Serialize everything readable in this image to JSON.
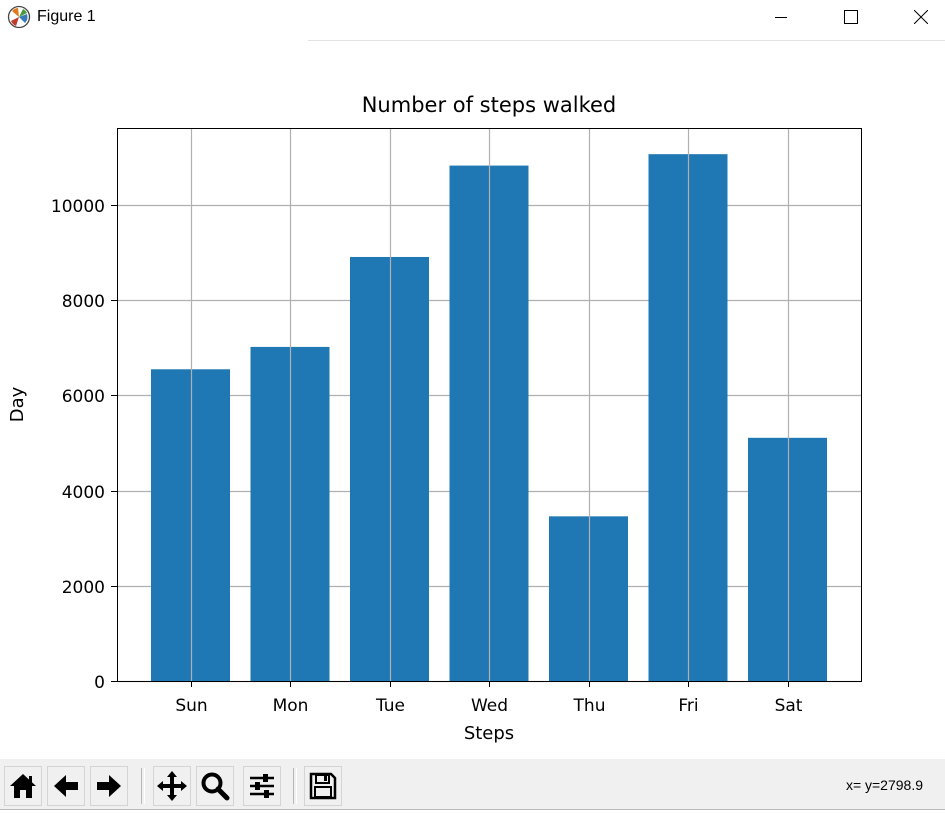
{
  "window": {
    "title": "Figure 1",
    "icon": "matplotlib-logo-icon",
    "controls": [
      "minimize-icon",
      "maximize-icon",
      "close-icon"
    ]
  },
  "toolbar": {
    "buttons": [
      {
        "name": "home-button",
        "icon": "home-icon"
      },
      {
        "name": "back-button",
        "icon": "arrow-left-icon"
      },
      {
        "name": "forward-button",
        "icon": "arrow-right-icon"
      },
      {
        "name": "pan-button",
        "icon": "move-icon"
      },
      {
        "name": "zoom-button",
        "icon": "magnifier-icon"
      },
      {
        "name": "configure-subplots-button",
        "icon": "sliders-icon"
      },
      {
        "name": "save-button",
        "icon": "floppy-disk-icon"
      }
    ],
    "coordinates": "x= y=2798.9"
  },
  "colors": {
    "bar": "#1f77b4",
    "grid": "#b0b0b0",
    "toolbar_bg": "#f0f0f0"
  },
  "chart_data": {
    "type": "bar",
    "title": "Number of steps walked",
    "xlabel": "Steps",
    "ylabel": "Day",
    "categories": [
      "Sun",
      "Mon",
      "Tue",
      "Wed",
      "Thu",
      "Fri",
      "Sat"
    ],
    "values": [
      6550,
      7020,
      8910,
      10830,
      3460,
      11070,
      5110
    ],
    "ylim": [
      0,
      11620
    ],
    "yticks": [
      0,
      2000,
      4000,
      6000,
      8000,
      10000
    ],
    "grid": true,
    "legend": "none"
  }
}
